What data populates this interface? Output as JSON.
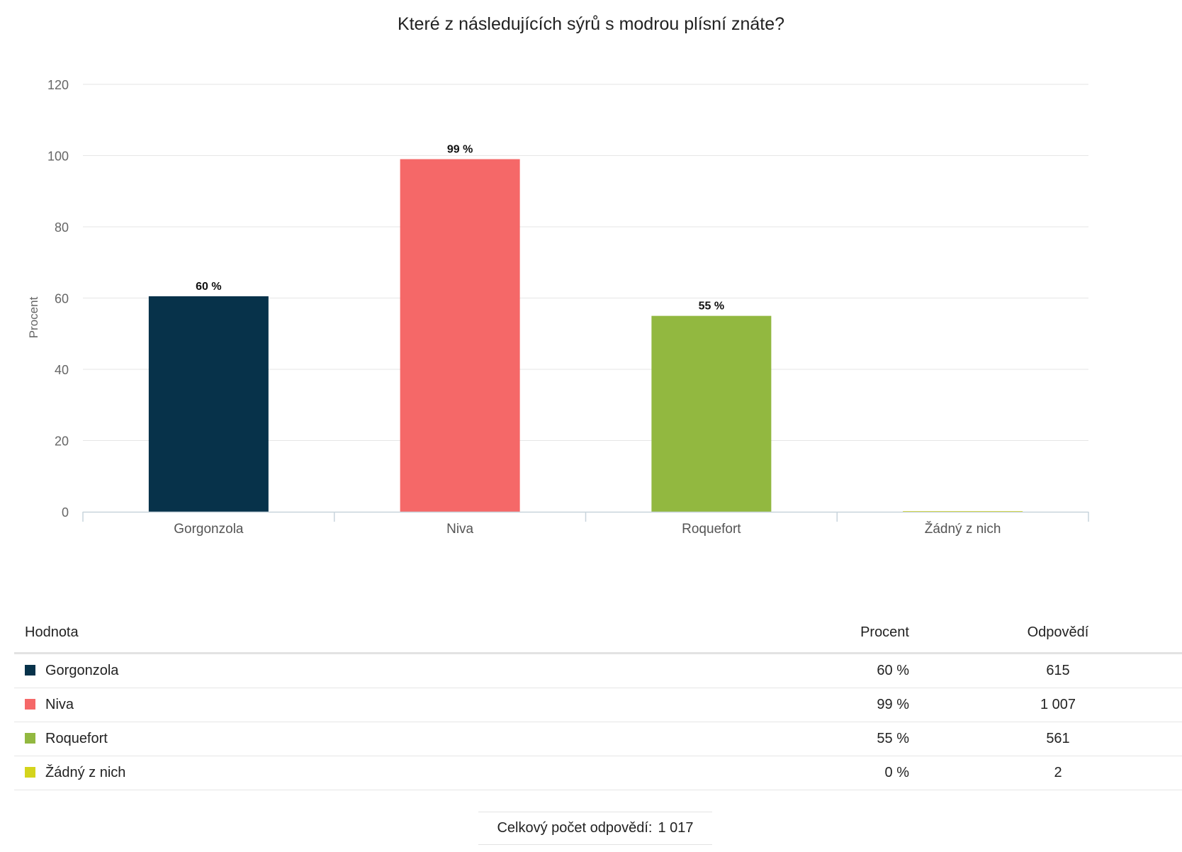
{
  "chart_data": {
    "type": "bar",
    "title": "Které z následujících sýrů s modrou plísní znáte?",
    "ylabel": "Procent",
    "xlabel": "",
    "ylim": [
      0,
      120
    ],
    "yticks": [
      0,
      20,
      40,
      60,
      80,
      100,
      120
    ],
    "grid": true,
    "categories": [
      "Gorgonzola",
      "Niva",
      "Roquefort",
      "Žádný z nich"
    ],
    "values": [
      60.5,
      99,
      55,
      0.2
    ],
    "data_labels": [
      "60 %",
      "99 %",
      "55 %",
      ""
    ],
    "colors": [
      "#07324a",
      "#f56868",
      "#92b840",
      "#d4d41c"
    ]
  },
  "table": {
    "headers": {
      "value": "Hodnota",
      "percent": "Procent",
      "count": "Odpovědí"
    },
    "rows": [
      {
        "name": "Gorgonzola",
        "percent": "60 %",
        "count": "615",
        "color": "#07324a"
      },
      {
        "name": "Niva",
        "percent": "99 %",
        "count": "1 007",
        "color": "#f56868"
      },
      {
        "name": "Roquefort",
        "percent": "55 %",
        "count": "561",
        "color": "#92b840"
      },
      {
        "name": "Žádný z nich",
        "percent": "0 %",
        "count": "2",
        "color": "#d4d41c"
      }
    ]
  },
  "total": {
    "label": "Celkový počet odpovědí:",
    "value": "1 017"
  }
}
